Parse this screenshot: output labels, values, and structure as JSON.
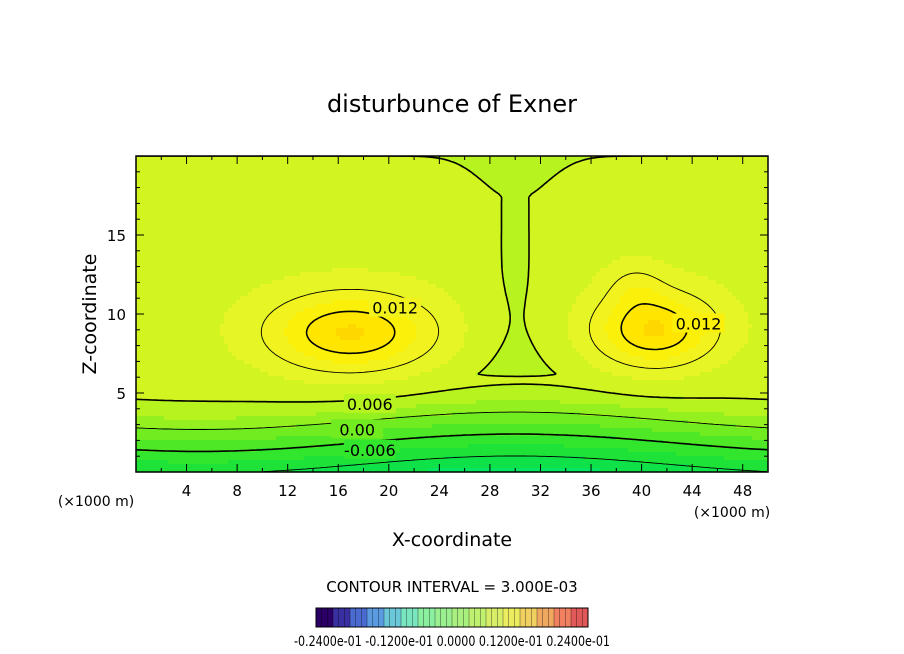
{
  "chart_data": {
    "type": "contour",
    "title": "disturbunce of Exner",
    "xlabel": "X-coordinate",
    "ylabel": "Z-coordinate",
    "x_unit": "(×1000 m)",
    "z_unit": "(×1000 m)",
    "xlim": [
      0,
      50
    ],
    "ylim": [
      0,
      20
    ],
    "x_ticks": [
      "4",
      "8",
      "12",
      "16",
      "20",
      "24",
      "28",
      "32",
      "36",
      "40",
      "44",
      "48"
    ],
    "y_ticks": [
      "5",
      "10",
      "15"
    ],
    "contour_labels": [
      {
        "text": "0.012",
        "x": 20.5,
        "z": 10.4
      },
      {
        "text": "0.012",
        "x": 44.5,
        "z": 9.4
      },
      {
        "text": "0.006",
        "x": 18.5,
        "z": 4.3
      },
      {
        "text": "0.00",
        "x": 17.5,
        "z": 2.7
      },
      {
        "text": "-0.006",
        "x": 18.5,
        "z": 1.4
      }
    ],
    "contour_interval_label": "CONTOUR INTERVAL = 3.000E-03",
    "colorbar": {
      "colors": [
        "#2a0066",
        "#3a2fa0",
        "#4a6ad0",
        "#5a9ae0",
        "#6ac8d8",
        "#7ae6c0",
        "#8af0a0",
        "#9af090",
        "#aaf080",
        "#c0f070",
        "#d8ee68",
        "#ecec60",
        "#f0d060",
        "#f0a860",
        "#f08060",
        "#e05858"
      ],
      "label_text": "-0.2400e-01 -0.1200e-01 0.0000 0.1200e-01 0.2400e-01"
    }
  }
}
